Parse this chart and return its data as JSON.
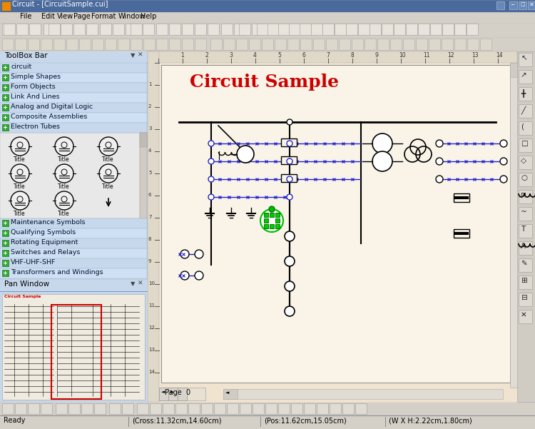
{
  "title_bar": "Circuit - [CircuitSample.cui]",
  "menu_items": [
    "File",
    "Edit",
    "View",
    "Page",
    "Format",
    "Window",
    "Help"
  ],
  "toolbox_title": "ToolBox Bar",
  "toolbox_items": [
    "circuit",
    "Simple Shapes",
    "Form Objects",
    "Link And Lines",
    "Analog and Digital Logic",
    "Composite Assemblies",
    "Electron Tubes",
    "Maintenance Symbols",
    "Qualifying Symbols",
    "Rotating Equipment",
    "Switches and Relays",
    "VHF-UHF-SHF",
    "Transformers and Windings"
  ],
  "pan_window_title": "Pan Window",
  "circuit_title": "Circuit Sample",
  "circuit_title_color": "#CC0000",
  "status_bar_text": "Ready",
  "status_cross": "(Cross:11.32cm,14.60cm)",
  "status_pos": "(Pos:11.62cm,15.05cm)",
  "status_wh": "(W X H:2.22cm,1.80cm)",
  "page_label": "Page  0",
  "bg_titlebar": "#4a6a9c",
  "bg_toolbar": "#d4d0c8",
  "bg_toolbox": "#bdd0e0",
  "bg_canvas": "#f0e4d0",
  "bg_status": "#d4d0c8",
  "bg_window": "#d4d0c8",
  "color_green_icon": "#00aa00",
  "color_blue_line": "#2222cc",
  "color_black": "#000000",
  "color_white": "#ffffff",
  "color_red": "#cc0000",
  "figsize": [
    7.5,
    6.01
  ],
  "dpi": 100
}
